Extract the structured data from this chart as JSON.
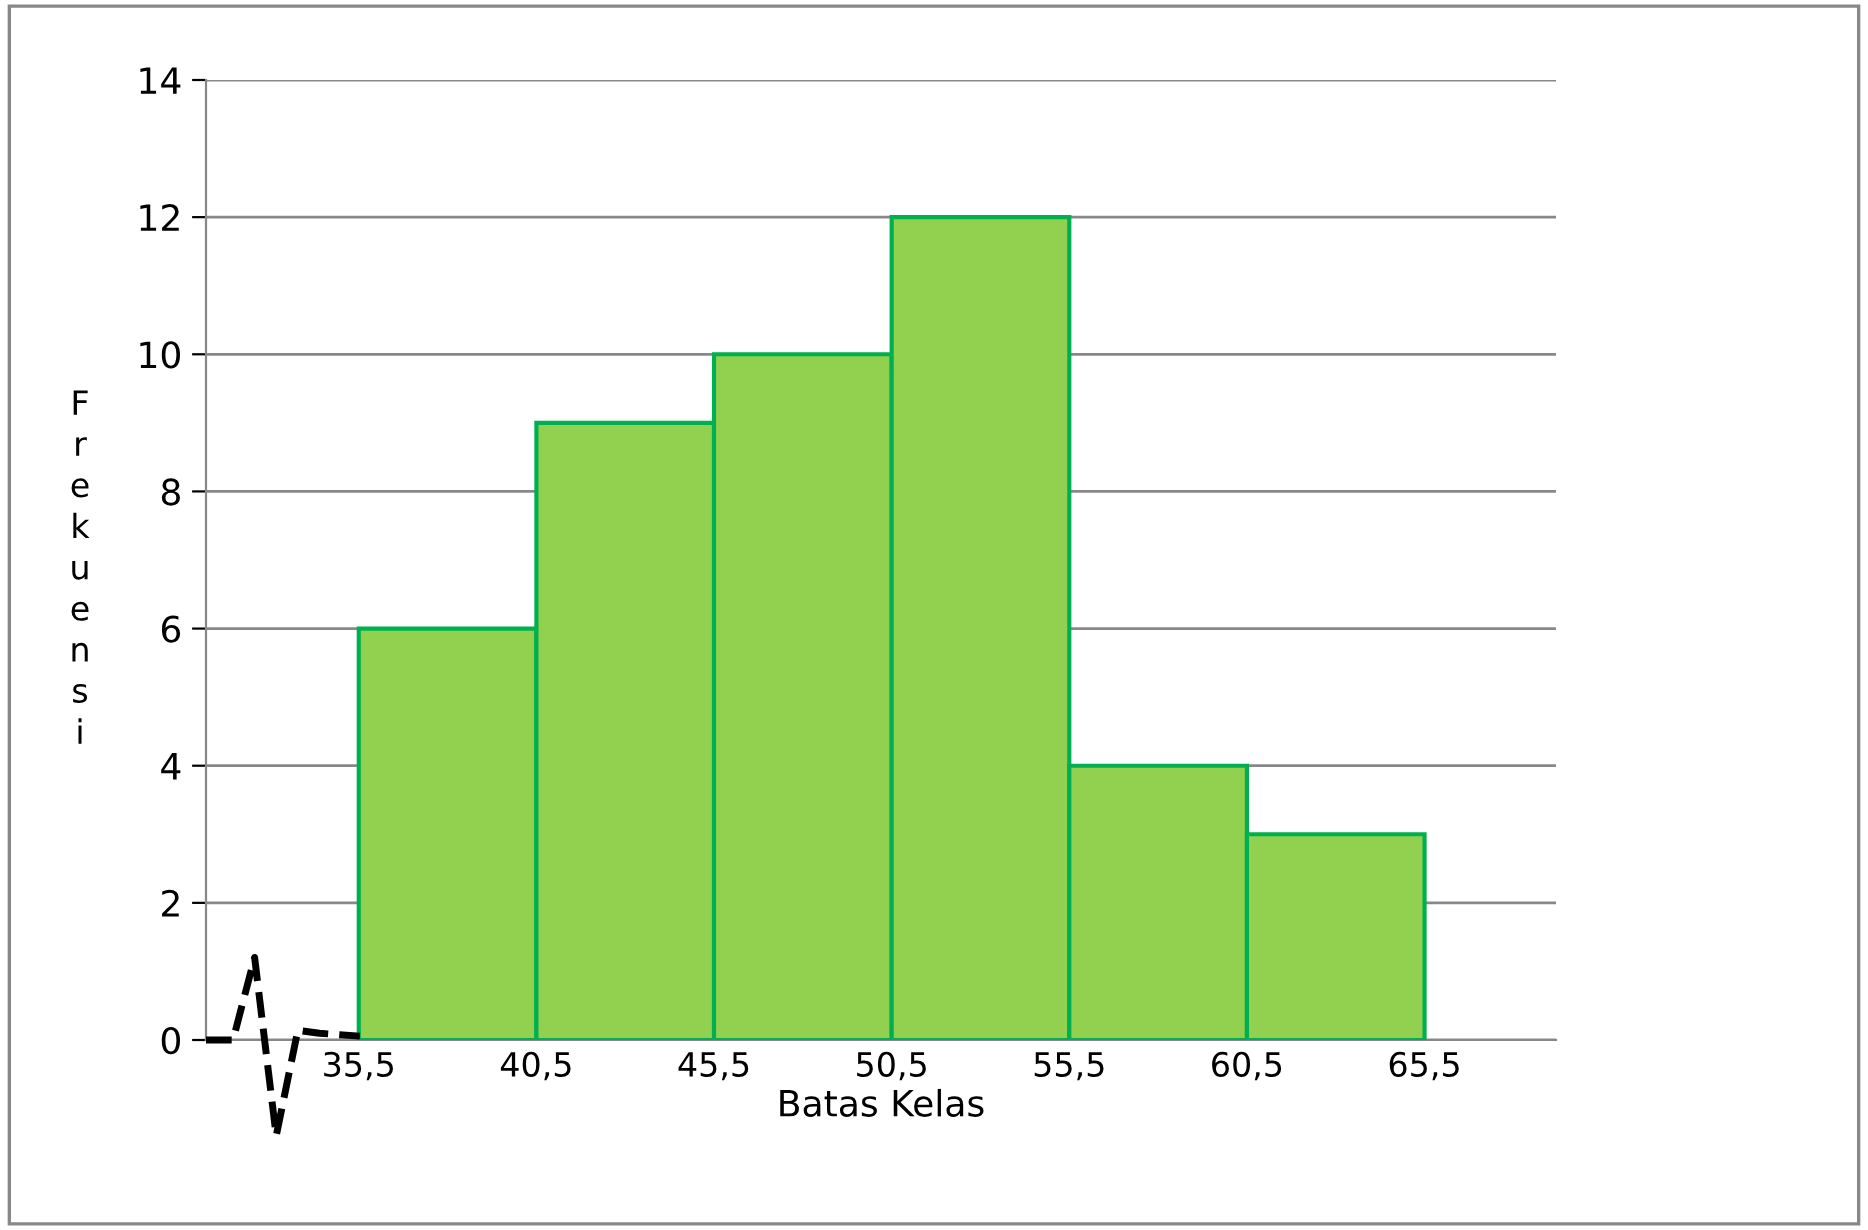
{
  "chart_data": {
    "type": "histogram",
    "xlabel": "Batas Kelas",
    "ylabel": "Frekuensi",
    "bins": [
      35.5,
      40.5,
      45.5,
      50.5,
      55.5,
      60.5,
      65.5
    ],
    "values": [
      6,
      9,
      10,
      12,
      4,
      3
    ],
    "color": "#92d050",
    "xlim": [
      31.2,
      69.2
    ],
    "xticks": [
      {
        "value": 35.5,
        "label": "35,5"
      },
      {
        "value": 40.5,
        "label": "40,5"
      },
      {
        "value": 45.5,
        "label": "45,5"
      },
      {
        "value": 50.5,
        "label": "50,5"
      },
      {
        "value": 55.5,
        "label": "55,5"
      },
      {
        "value": 60.5,
        "label": "60,5"
      },
      {
        "value": 65.5,
        "label": "65,5"
      }
    ],
    "ylim": [
      0,
      14
    ],
    "yticks": [
      0,
      2,
      4,
      6,
      8,
      10,
      12,
      14
    ],
    "grid": "y"
  }
}
